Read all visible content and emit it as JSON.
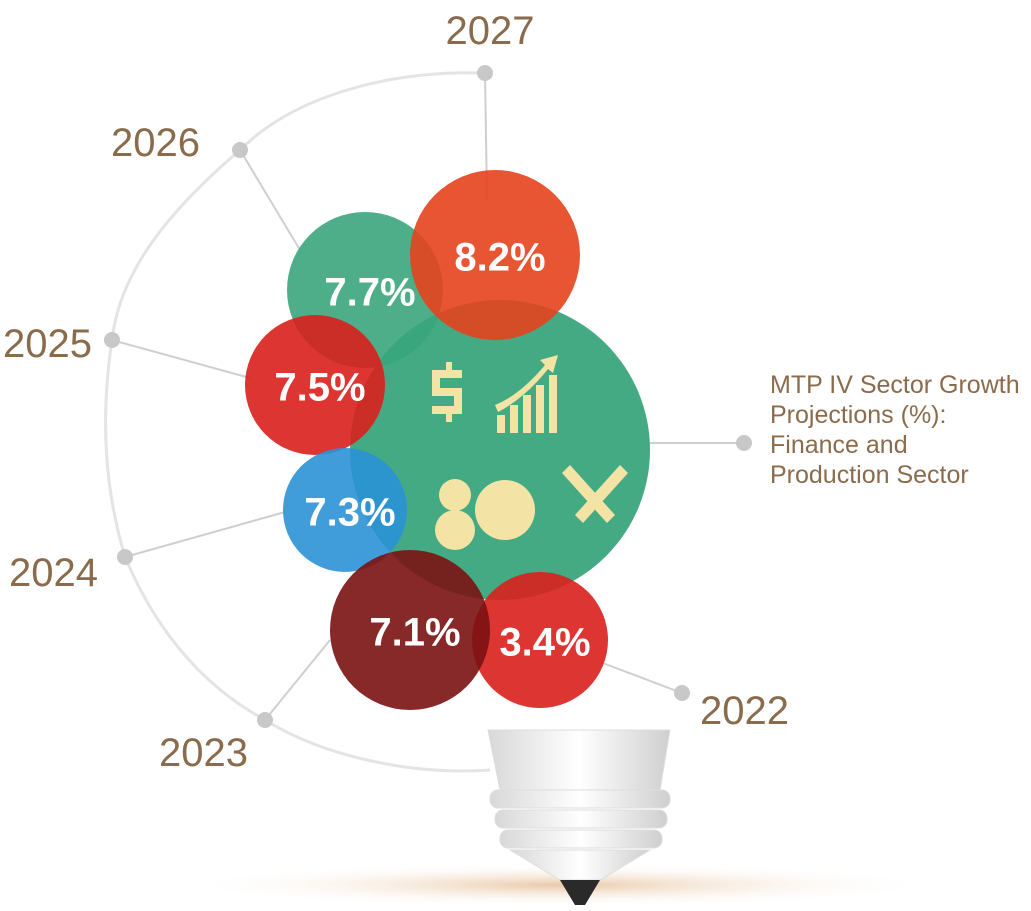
{
  "chart_data": {
    "type": "bulb",
    "title": "MTP IV Sector Growth Projections (%): Finance and Production Sector",
    "categories": [
      "2022",
      "2023",
      "2024",
      "2025",
      "2026",
      "2027"
    ],
    "values": [
      3.4,
      7.1,
      7.3,
      7.5,
      7.7,
      8.2
    ],
    "value_labels": [
      "3.4%",
      "7.1%",
      "7.3%",
      "7.5%",
      "7.7%",
      "8.2%"
    ],
    "colors": [
      "#d9201c",
      "#7b1212",
      "#2b92d6",
      "#d9201c",
      "#3aa57c",
      "#e5431d"
    ]
  }
}
